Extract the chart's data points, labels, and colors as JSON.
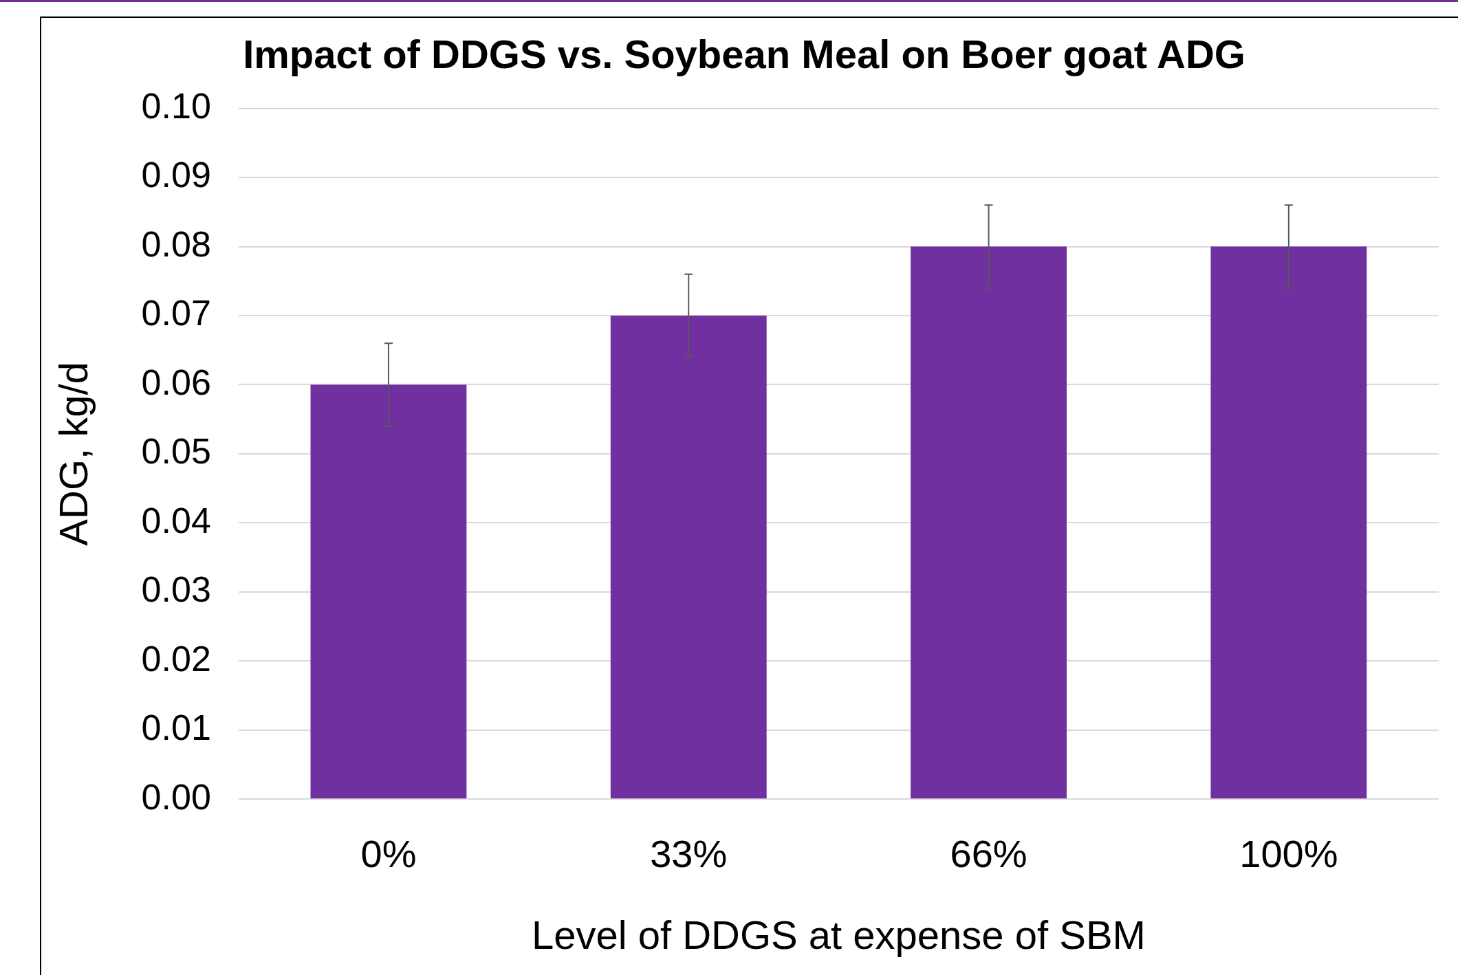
{
  "chart_data": {
    "type": "bar",
    "title": "Impact of DDGS vs. Soybean Meal on Boer goat ADG",
    "xlabel": "Level of DDGS at expense of SBM",
    "ylabel": "ADG, kg/d",
    "categories": [
      "0%",
      "33%",
      "66%",
      "100%"
    ],
    "values": [
      0.06,
      0.07,
      0.08,
      0.08
    ],
    "errors": [
      0.006,
      0.006,
      0.006,
      0.006
    ],
    "color": "#7030a0",
    "ylim": [
      0,
      0.1
    ],
    "yticks": [
      {
        "value": 0,
        "label": "0.00"
      },
      {
        "value": 0.01,
        "label": "0.01"
      },
      {
        "value": 0.02,
        "label": "0.02"
      },
      {
        "value": 0.03,
        "label": "0.03"
      },
      {
        "value": 0.04,
        "label": "0.04"
      },
      {
        "value": 0.05,
        "label": "0.05"
      },
      {
        "value": 0.06,
        "label": "0.06"
      },
      {
        "value": 0.07,
        "label": "0.07"
      },
      {
        "value": 0.08,
        "label": "0.08"
      },
      {
        "value": 0.09,
        "label": "0.09"
      },
      {
        "value": 0.1,
        "label": "0.10"
      }
    ],
    "grid": "y",
    "legend": false
  }
}
